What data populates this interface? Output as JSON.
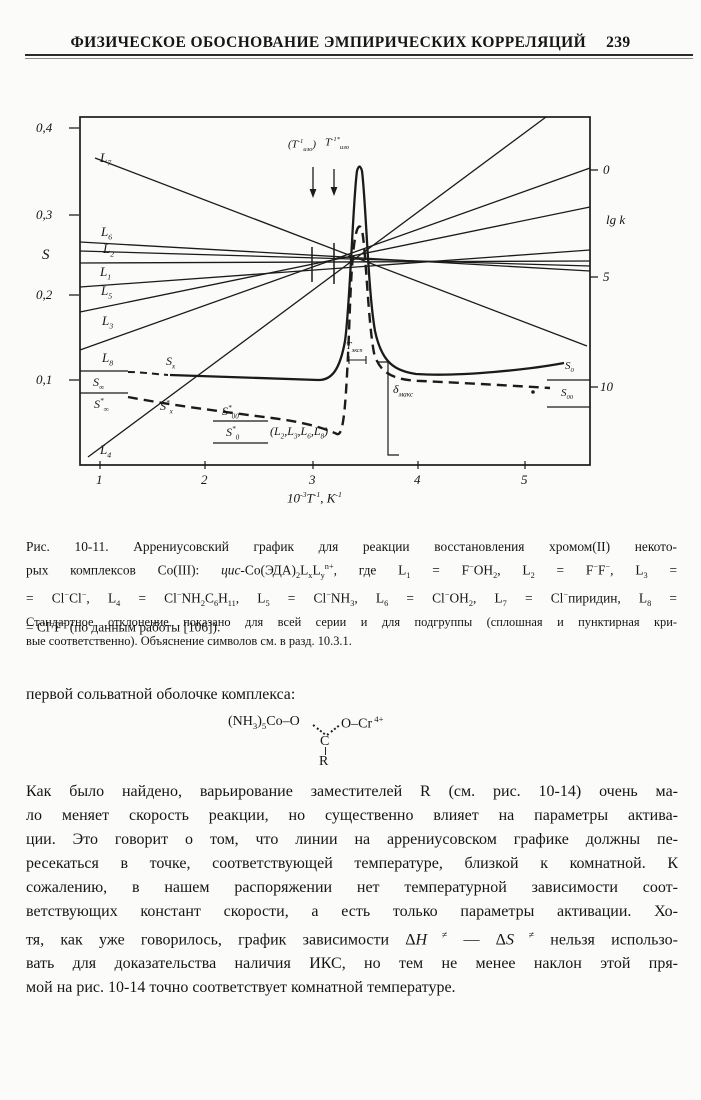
{
  "header": {
    "title": "ФИЗИЧЕСКОЕ ОБОСНОВАНИЕ ЭМПИРИЧЕСКИХ КОРРЕЛЯЦИЙ",
    "page_number": "239"
  },
  "figure": {
    "left_axis": {
      "label": "S",
      "ticks": [
        "0,4",
        "0,3",
        "0,2",
        "0,1"
      ]
    },
    "right_axis": {
      "label_rich": "lg k",
      "ticks": [
        "0",
        "5",
        "10"
      ]
    },
    "x_axis": {
      "label_rich": "10<sup>-3</sup>T<sup>-1</sup>, К<sup>-1</sup>",
      "ticks": [
        "1",
        "2",
        "3",
        "4",
        "5"
      ]
    },
    "line_labels": {
      "L7": "L<sub>7</sub>",
      "L6": "L<sub>6</sub>",
      "L2": "L<sub>2</sub>",
      "L1": "L<sub>1</sub>",
      "L5": "L<sub>5</sub>",
      "L3": "L<sub>3</sub>",
      "L8": "L<sub>8</sub>",
      "L4": "L<sub>4</sub>"
    },
    "annotations": {
      "t_iso_paren": "(T<sup>-1</sup><sub>изо</sub>)",
      "t_iso_star": "T<sup>-1*</sup><sub>изо</sub>",
      "t_exp": "Т<sub>эксп</sub>",
      "delta_max": "δ<sub>макс</sub>",
      "s_inf": "S<sub>∞</sub>",
      "s_inf_star": "S<sup>*</sup><sub>∞</sub>",
      "s_x": "S<sub>x</sub>",
      "s_x_star": "S<sup>*</sup><sub>x</sub>",
      "s_00_star": "S<sup>*</sup><sub>00</sub>",
      "s_0_star": "S<sup>*</sup><sub>0</sub>",
      "l_group": "(L<sub>2</sub>,L<sub>3</sub>,L<sub>6</sub>,L<sub>8</sub>)",
      "s_0": "S<sub>0</sub>",
      "s_00": "S<sub>00</sub>"
    }
  },
  "chart_data": {
    "type": "line",
    "xlabel": "10⁻³T⁻¹, К⁻¹",
    "ylabel_left": "S",
    "ylabel_right": "lg k",
    "x_ticks": [
      1,
      2,
      3,
      4,
      5
    ],
    "left_ticks": [
      0.1,
      0.2,
      0.3,
      0.4
    ],
    "right_ticks": [
      0,
      5,
      10
    ],
    "series": [
      {
        "name": "L1",
        "x": [
          0.8,
          5.6
        ],
        "S": [
          0.239,
          0.24
        ]
      },
      {
        "name": "L2",
        "x": [
          0.8,
          5.6
        ],
        "S": [
          0.254,
          0.233
        ]
      },
      {
        "name": "L3",
        "x": [
          0.8,
          5.6
        ],
        "S": [
          0.181,
          0.306
        ]
      },
      {
        "name": "L4",
        "x": [
          0.9,
          5.2
        ],
        "S": [
          0.008,
          0.413
        ]
      },
      {
        "name": "L5",
        "x": [
          0.8,
          5.6
        ],
        "S": [
          0.211,
          0.255
        ]
      },
      {
        "name": "L6",
        "x": [
          0.8,
          5.6
        ],
        "S": [
          0.264,
          0.229
        ]
      },
      {
        "name": "L7",
        "x": [
          0.95,
          5.6
        ],
        "S": [
          0.364,
          0.14
        ]
      },
      {
        "name": "L8",
        "x": [
          0.8,
          5.6
        ],
        "S": [
          0.136,
          0.352
        ]
      }
    ],
    "crossing_point": {
      "x": 3.1,
      "S": 0.24
    },
    "solid_curve": {
      "name": "стандартное отклонение всей серии",
      "plateau_left": 0.105,
      "peak": {
        "x": 3.25,
        "S": 0.355
      },
      "plateau_right": 0.11
    },
    "dashed_curve": {
      "name": "стандартное отклонение подгруппы",
      "plateau_left": 0.09,
      "peak": {
        "x": 3.2,
        "S": 0.3
      },
      "plateau_right": 0.095
    },
    "annotations": [
      "(T⁻¹изо)",
      "T⁻¹*изо",
      "Тэксп",
      "δмакс",
      "S∞",
      "S*∞",
      "Sx",
      "S*x",
      "S*00",
      "S*0",
      "(L2,L3,L6,L8)",
      "S0",
      "S00"
    ]
  },
  "caption": {
    "lines": [
      "Рис. 10-11. Аррениусовский график для реакции восстановления хромом(II) некото-",
      "рых комплексов Co(III): <i>цис</i>-Co(ЭДА)<sub>2</sub>L<sub>x</sub>L<sub>y</sub><sup>n+</sup>, где L<sub>1</sub> = F<sup>−</sup>OH<sub>2</sub>, L<sub>2</sub> = F<sup>−</sup>F<sup>−</sup>, L<sub>3</sub> =",
      "= Cl<sup>−</sup>Cl<sup>−</sup>, L<sub>4</sub> = Cl<sup>−</sup>NH<sub>2</sub>C<sub>6</sub>H<sub>11</sub>, L<sub>5</sub> = Cl<sup>−</sup>NH<sub>3</sub>, L<sub>6</sub> = Cl<sup>−</sup>OH<sub>2</sub>, L<sub>7</sub> = Cl<sup>−</sup>пиридин, L<sub>8</sub> =",
      "= Cl<sup>−</sup>F<sup>−</sup> (по данным работы [106])."
    ]
  },
  "note": {
    "lines": [
      "Стандартное отклонение показано для всей серии и для подгруппы (сплошная и пунктирная кри-",
      "вые соответственно). Объяснение символов см. в разд. 10.3.1."
    ]
  },
  "body": {
    "intro": "первой сольватной оболочке комплекса:",
    "formula": {
      "left": "(NH<sub>3</sub>)<sub>5</sub>Co–O",
      "right": "O–Cr<sup> 4+</sup>",
      "center": "C",
      "substituent": "R"
    },
    "para_lines": [
      "Как было найдено, варьирование заместителей R (см. рис. 10-14) очень ма-",
      "ло меняет скорость реакции, но существенно влияет на параметры актива-",
      "ции. Это говорит о том, что линии на аррениусовском графике должны пе-",
      "ресекаться в точке, соответствующей температуре, близкой к комнатной. К",
      "сожалению, в нашем распоряжении нет температурной зависимости соот-",
      "ветствующих констант скорости, а есть только параметры активации. Хо-",
      "тя, как уже говорилось, график зависимости Δ<i>H</i><sup> ≠</sup> — Δ<i>S</i><sup> ≠</sup> нельзя использо-",
      "вать для доказательства наличия ИКС, но тем не менее наклон этой пря-",
      "мой на рис. 10-14 точно соответствует комнатной температуре."
    ]
  }
}
